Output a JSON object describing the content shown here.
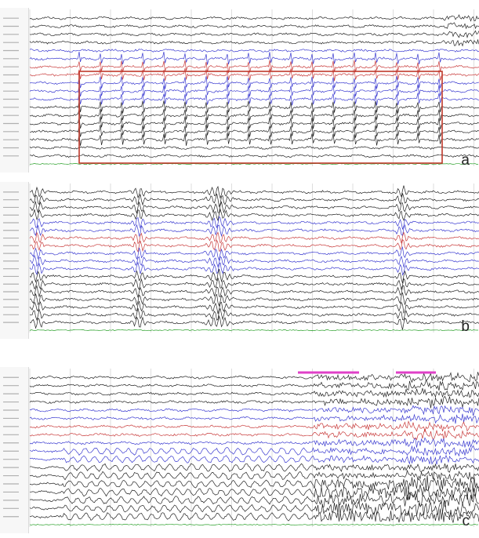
{
  "figure": {
    "panels": [
      {
        "id": "a",
        "letter": "a",
        "channel_count": 18,
        "highlight_box": true,
        "highlight_color": "#c0392b",
        "event_type": "periodic-discharges"
      },
      {
        "id": "b",
        "letter": "b",
        "channel_count": 18,
        "highlight_box": false,
        "event_type": "bursts"
      },
      {
        "id": "c",
        "letter": "c",
        "channel_count": 18,
        "highlight_box": false,
        "event_type": "seizure-onset",
        "marker_color": "#e040c8"
      }
    ],
    "trace_colors": {
      "black": "#222222",
      "blue": "#3a3ad0",
      "red": "#c83a3a",
      "green": "#2aa02a"
    },
    "grid_color": "#d6d6d6"
  }
}
